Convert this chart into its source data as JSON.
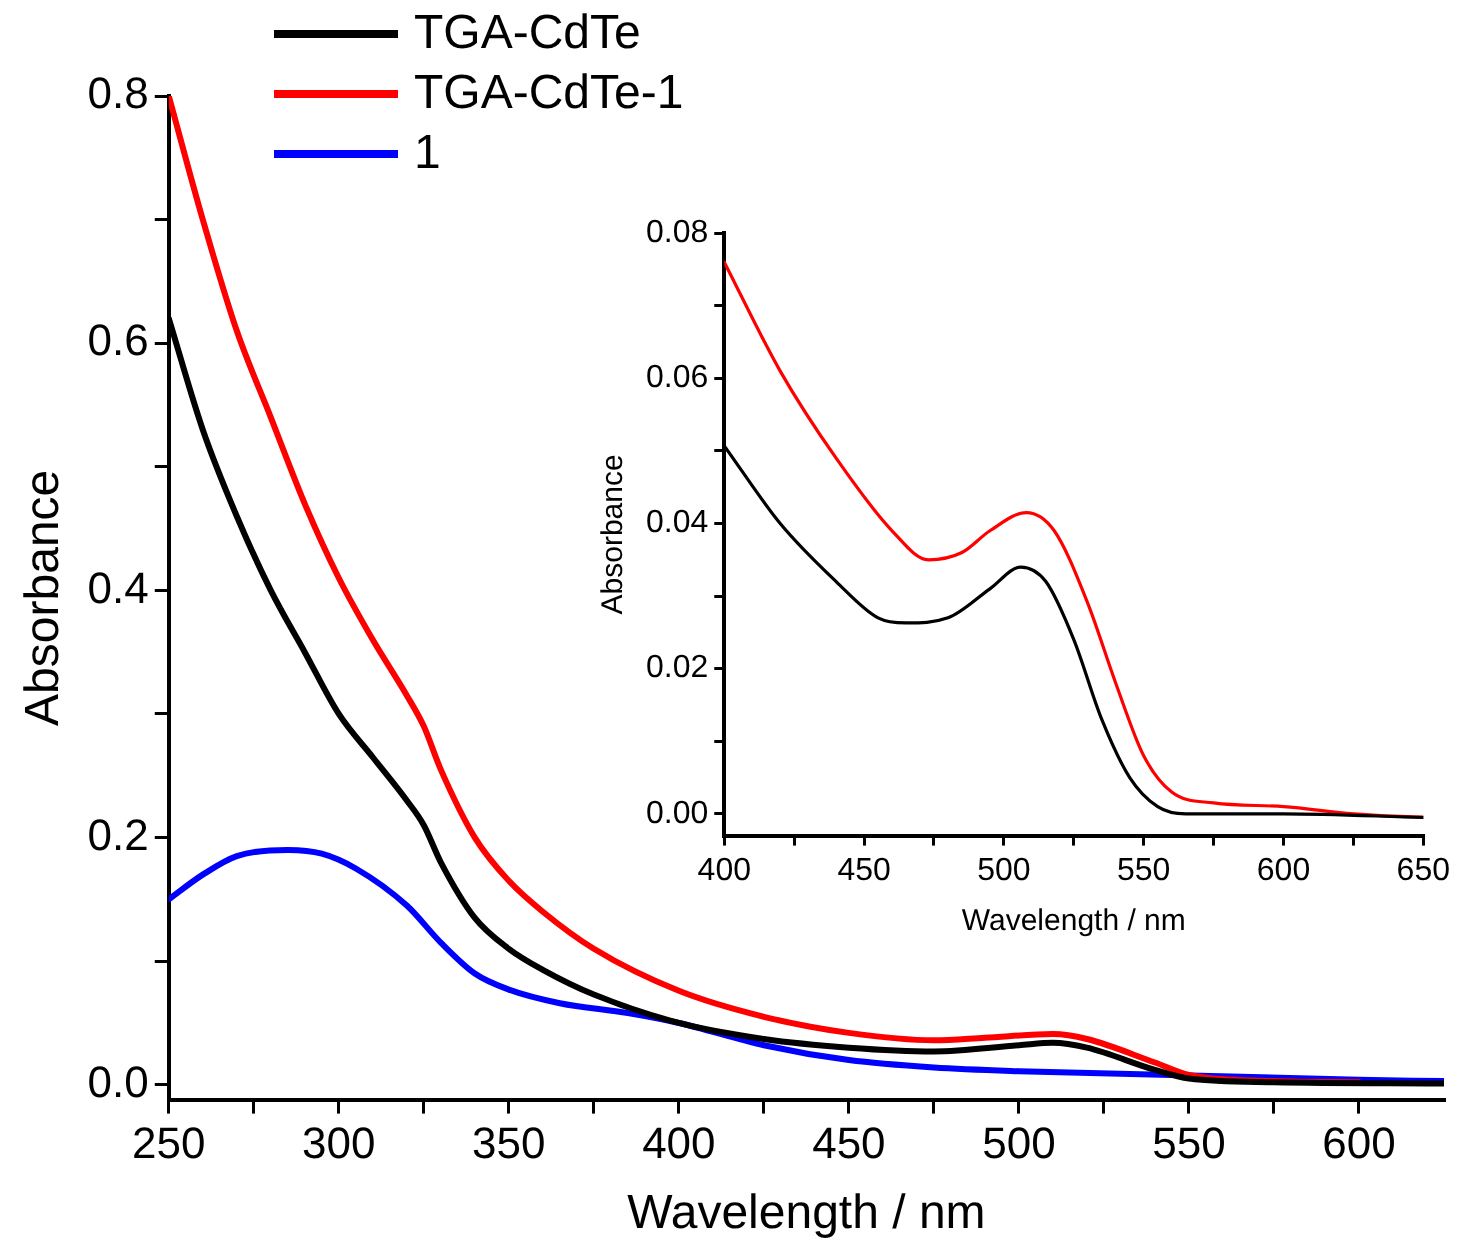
{
  "chart_data": [
    {
      "type": "line",
      "xlabel": "Wavelength / nm",
      "ylabel": "Absorbance",
      "legend": "top left",
      "marker": "none",
      "line_style": "solid",
      "grid": false,
      "xlim": [
        250,
        625
      ],
      "xticks": [
        250,
        {
          "value": 275,
          "label": null
        },
        300,
        {
          "value": 325,
          "label": null
        },
        350,
        {
          "value": 375,
          "label": null
        },
        400,
        {
          "value": 425,
          "label": null
        },
        450,
        {
          "value": 475,
          "label": null
        },
        500,
        {
          "value": 525,
          "label": null
        },
        550,
        {
          "value": 575,
          "label": null
        },
        600
      ],
      "ylim": [
        -0.012,
        0.8
      ],
      "yticks": [
        {
          "value": 0,
          "label": "0.0"
        },
        {
          "value": 0.1,
          "label": null
        },
        0.2,
        {
          "value": 0.3,
          "label": null
        },
        0.4,
        {
          "value": 0.5,
          "label": null
        },
        0.6,
        {
          "value": 0.7,
          "label": null
        },
        0.8
      ],
      "series": [
        {
          "name": "TGA-CdTe",
          "color": "#000000",
          "x": [
            250,
            260,
            270,
            280,
            290,
            300,
            310,
            320,
            325,
            330,
            340,
            350,
            360,
            375,
            400,
            425,
            450,
            475,
            500,
            510,
            520,
            540,
            550,
            575,
            625
          ],
          "values": [
            0.62,
            0.53,
            0.46,
            0.4,
            0.35,
            0.3,
            0.265,
            0.23,
            0.21,
            0.18,
            0.135,
            0.11,
            0.093,
            0.073,
            0.05,
            0.037,
            0.03,
            0.027,
            0.032,
            0.034,
            0.03,
            0.012,
            0.005,
            0.002,
            0.001
          ]
        },
        {
          "name": "TGA-CdTe-1",
          "color": "#ff0000",
          "x": [
            250,
            260,
            270,
            280,
            290,
            300,
            310,
            320,
            325,
            330,
            340,
            350,
            360,
            375,
            400,
            425,
            450,
            475,
            490,
            510,
            520,
            540,
            550,
            575,
            600
          ],
          "values": [
            0.8,
            0.7,
            0.61,
            0.54,
            0.47,
            0.41,
            0.36,
            0.315,
            0.29,
            0.255,
            0.2,
            0.165,
            0.14,
            0.11,
            0.076,
            0.055,
            0.042,
            0.036,
            0.038,
            0.041,
            0.037,
            0.018,
            0.008,
            0.003,
            0.002
          ]
        },
        {
          "name": "1",
          "color": "#0000ff",
          "x": [
            250,
            260,
            270,
            285,
            295,
            305,
            320,
            330,
            340,
            350,
            365,
            385,
            400,
            425,
            450,
            475,
            500,
            600,
            625
          ],
          "values": [
            0.15,
            0.17,
            0.185,
            0.19,
            0.187,
            0.175,
            0.145,
            0.115,
            0.09,
            0.077,
            0.066,
            0.058,
            0.05,
            0.032,
            0.02,
            0.014,
            0.011,
            0.004,
            0.003
          ]
        }
      ]
    },
    {
      "type": "line",
      "xlabel": "Wavelength / nm",
      "ylabel": "Absorbance",
      "marker": "none",
      "line_style": "solid",
      "grid": false,
      "xlim": [
        400,
        650
      ],
      "xticks": [
        400,
        {
          "value": 425,
          "label": null
        },
        450,
        {
          "value": 475,
          "label": null
        },
        500,
        {
          "value": 525,
          "label": null
        },
        550,
        {
          "value": 575,
          "label": null
        },
        600,
        {
          "value": 625,
          "label": null
        },
        650
      ],
      "ylim": [
        -0.003,
        0.08
      ],
      "yticks": [
        {
          "value": 0,
          "label": "0.00"
        },
        {
          "value": 0.01,
          "label": null
        },
        0.02,
        {
          "value": 0.03,
          "label": null
        },
        0.04,
        {
          "value": 0.05,
          "label": null
        },
        0.06,
        {
          "value": 0.07,
          "label": null
        },
        0.08
      ],
      "series": [
        {
          "color": "#000000",
          "x": [
            400,
            420,
            440,
            455,
            465,
            480,
            495,
            506,
            515,
            525,
            535,
            545,
            555,
            565,
            600,
            650
          ],
          "values": [
            0.0507,
            0.04,
            0.032,
            0.027,
            0.0263,
            0.027,
            0.031,
            0.034,
            0.032,
            0.024,
            0.013,
            0.005,
            0.001,
            0,
            0,
            -0.0005
          ]
        },
        {
          "color": "#ff0000",
          "x": [
            400,
            420,
            440,
            460,
            473,
            485,
            495,
            508,
            518,
            530,
            540,
            550,
            560,
            575,
            600,
            625,
            650
          ],
          "values": [
            0.076,
            0.061,
            0.049,
            0.039,
            0.035,
            0.036,
            0.039,
            0.0415,
            0.039,
            0.029,
            0.018,
            0.008,
            0.003,
            0.0015,
            0.001,
            0,
            -0.0005
          ]
        }
      ]
    }
  ]
}
